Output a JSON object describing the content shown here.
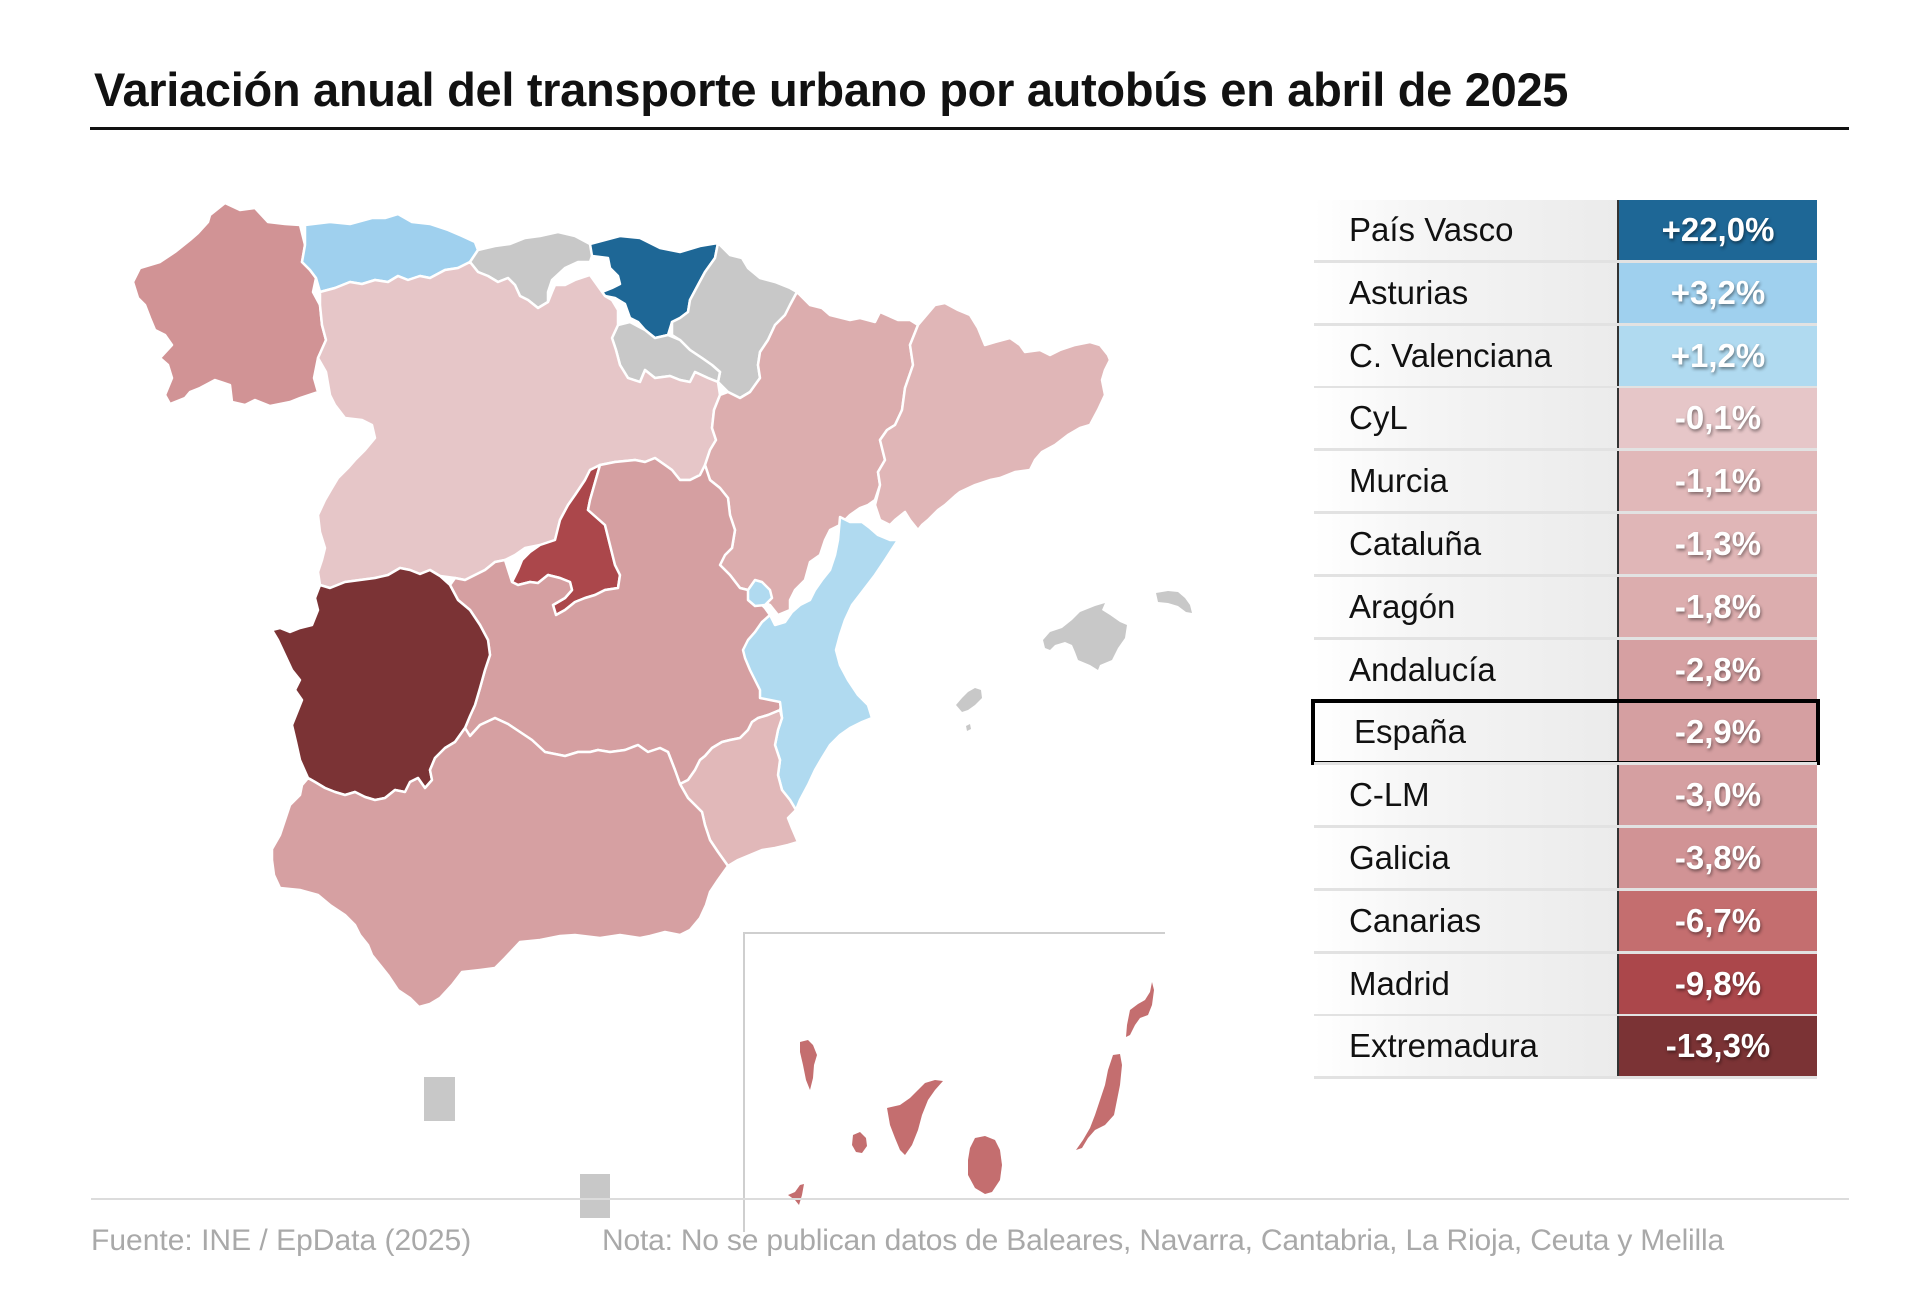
{
  "title": "Variación anual del transporte urbano por autobús en abril de 2025",
  "legend_colors": {
    "no_data": "#c8c8c8",
    "inset_frame": "#cfcfcf"
  },
  "ranking": [
    {
      "region": "País Vasco",
      "value": "+22,0%",
      "color": "#1e6796"
    },
    {
      "region": "Asturias",
      "value": "+3,2%",
      "color": "#9fd0ee"
    },
    {
      "region": "C. Valenciana",
      "value": "+1,2%",
      "color": "#b0daf0"
    },
    {
      "region": "CyL",
      "value": "-0,1%",
      "color": "#e6c6c8"
    },
    {
      "region": "Murcia",
      "value": "-1,1%",
      "color": "#e1b8b9"
    },
    {
      "region": "Cataluña",
      "value": "-1,3%",
      "color": "#e0b6b7"
    },
    {
      "region": "Aragón",
      "value": "-1,8%",
      "color": "#dcadae"
    },
    {
      "region": "Andalucía",
      "value": "-2,8%",
      "color": "#d6a0a2"
    },
    {
      "region": "España",
      "value": "-2,9%",
      "color": "#d59fa1",
      "highlight": true
    },
    {
      "region": "C-LM",
      "value": "-3,0%",
      "color": "#d59fa1"
    },
    {
      "region": "Galicia",
      "value": "-3,8%",
      "color": "#d19395"
    },
    {
      "region": "Canarias",
      "value": "-6,7%",
      "color": "#c46e6f"
    },
    {
      "region": "Madrid",
      "value": "-9,8%",
      "color": "#ab474b"
    },
    {
      "region": "Extremadura",
      "value": "-13,3%",
      "color": "#7b3335"
    }
  ],
  "map_regions": {
    "galicia": {
      "name": "Galicia",
      "value": -3.8,
      "color": "#d19395"
    },
    "asturias": {
      "name": "Asturias",
      "value": 3.2,
      "color": "#9fd0ee"
    },
    "cantabria": {
      "name": "Cantabria",
      "value": null,
      "color": "#c8c8c8"
    },
    "pais_vasco": {
      "name": "País Vasco",
      "value": 22.0,
      "color": "#1e6796"
    },
    "navarra": {
      "name": "Navarra",
      "value": null,
      "color": "#c8c8c8"
    },
    "la_rioja": {
      "name": "La Rioja",
      "value": null,
      "color": "#c8c8c8"
    },
    "castilla_leon": {
      "name": "CyL",
      "value": -0.1,
      "color": "#e6c6c8"
    },
    "aragon": {
      "name": "Aragón",
      "value": -1.8,
      "color": "#dcadae"
    },
    "cataluna": {
      "name": "Cataluña",
      "value": -1.3,
      "color": "#e0b6b7"
    },
    "madrid": {
      "name": "Madrid",
      "value": -9.8,
      "color": "#ab474b"
    },
    "castilla_la_mancha": {
      "name": "C-LM",
      "value": -3.0,
      "color": "#d59fa1"
    },
    "extremadura": {
      "name": "Extremadura",
      "value": -13.3,
      "color": "#7b3335"
    },
    "valencia": {
      "name": "C. Valenciana",
      "value": 1.2,
      "color": "#b0daf0"
    },
    "murcia": {
      "name": "Murcia",
      "value": -1.1,
      "color": "#e1b8b9"
    },
    "andalucia": {
      "name": "Andalucía",
      "value": -2.8,
      "color": "#d6a0a2"
    },
    "baleares": {
      "name": "Baleares",
      "value": null,
      "color": "#c8c8c8"
    },
    "canarias": {
      "name": "Canarias",
      "value": -6.7,
      "color": "#c46e6f"
    },
    "ceuta": {
      "name": "Ceuta",
      "value": null,
      "color": "#c8c8c8"
    },
    "melilla": {
      "name": "Melilla",
      "value": null,
      "color": "#c8c8c8"
    }
  },
  "footer": {
    "source": "Fuente: INE / EpData (2025)",
    "note": "Nota: No se publican datos de Baleares, Navarra, Cantabria, La Rioja, Ceuta y Melilla"
  }
}
